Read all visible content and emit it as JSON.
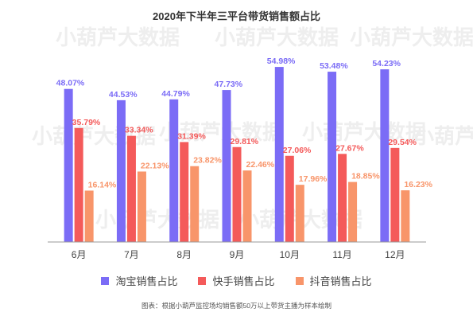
{
  "chart_data": {
    "type": "bar",
    "title": "2020年下半年三平台带货销售额占比",
    "categories": [
      "6月",
      "7月",
      "8月",
      "9月",
      "10月",
      "11月",
      "12月"
    ],
    "ylim": [
      0,
      60
    ],
    "grid": false,
    "legend_position": "bottom",
    "series": [
      {
        "name": "淘宝销售占比",
        "color": "#7b6cf6",
        "values": [
          48.07,
          44.53,
          44.79,
          47.73,
          54.98,
          53.48,
          54.23
        ],
        "labels": [
          "48.07%",
          "44.53%",
          "44.79%",
          "47.73%",
          "54.98%",
          "53.48%",
          "54.23%"
        ]
      },
      {
        "name": "快手销售占比",
        "color": "#f45a5a",
        "values": [
          35.79,
          33.34,
          31.39,
          29.81,
          27.06,
          27.67,
          29.54
        ],
        "labels": [
          "35.79%",
          "33.34%",
          "31.39%",
          "29.81%",
          "27.06%",
          "27.67%",
          "29.54%"
        ]
      },
      {
        "name": "抖音销售占比",
        "color": "#f8956a",
        "values": [
          16.14,
          22.13,
          23.82,
          22.46,
          17.96,
          18.85,
          16.23
        ],
        "labels": [
          "16.14%",
          "22.13%",
          "23.82%",
          "22.46%",
          "17.96%",
          "18.85%",
          "16.23%"
        ]
      }
    ],
    "note": "图表：根据小葫芦监控场均销售额50万以上带货主播为样本绘制",
    "watermark_text": "小葫芦大数据",
    "axis_color": "#999999"
  }
}
